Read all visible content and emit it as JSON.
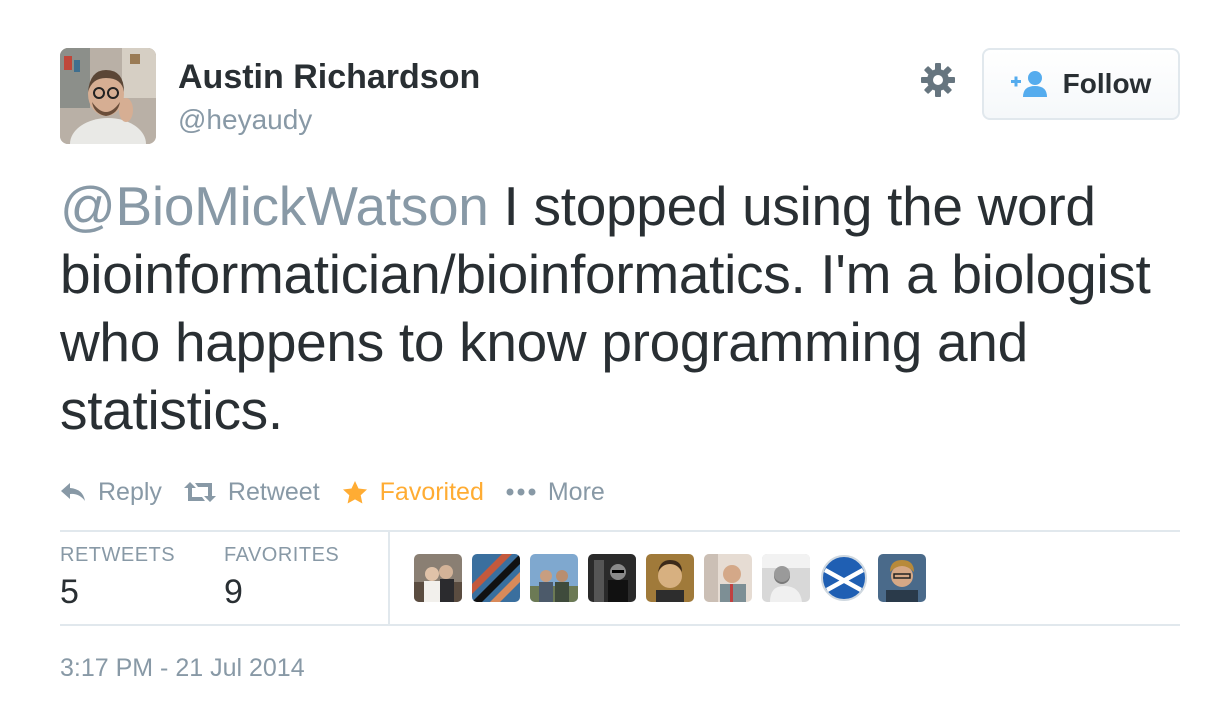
{
  "author": {
    "name": "Austin Richardson",
    "handle": "@heyaudy"
  },
  "icons": {
    "settings": "gear-icon",
    "follow": "add-user-icon",
    "reply": "reply-icon",
    "retweet": "retweet-icon",
    "favorite": "star-icon",
    "more": "ellipsis-icon"
  },
  "follow_button": {
    "label": "Follow"
  },
  "tweet": {
    "mention": "@BioMickWatson",
    "text": " I stopped using the word bioinformatician/bioinformatics. I'm a biologist who happens to know programming and statistics."
  },
  "actions": {
    "reply": "Reply",
    "retweet": "Retweet",
    "favorite": "Favorited",
    "more": "More"
  },
  "stats": {
    "retweets_label": "RETWEETS",
    "retweets_count": "5",
    "favorites_label": "FAVORITES",
    "favorites_count": "9"
  },
  "timestamp": "3:17 PM - 21 Jul 2014",
  "colors": {
    "text": "#292f33",
    "muted": "#8899a6",
    "favorited": "#ffac33",
    "follow_icon": "#55acee",
    "border": "#e1e8ed"
  }
}
